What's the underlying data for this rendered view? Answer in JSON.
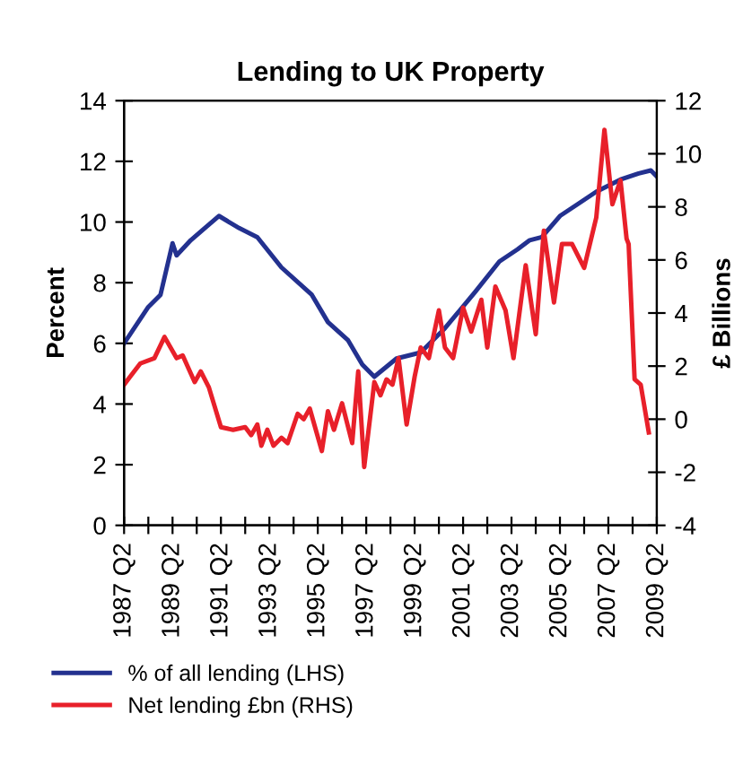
{
  "chart_data": {
    "type": "line",
    "title": "Lending to UK Property",
    "ylabel": "Percent",
    "y2label": "£ Billions",
    "xlim": [
      "1987-04",
      "2009-04"
    ],
    "xticks": [
      {
        "value": "1987-04",
        "label": "1987 Q2"
      },
      {
        "value": "1988-04",
        "label": null
      },
      {
        "value": "1989-04",
        "label": "1989 Q2"
      },
      {
        "value": "1990-04",
        "label": null
      },
      {
        "value": "1991-04",
        "label": "1991 Q2"
      },
      {
        "value": "1992-04",
        "label": null
      },
      {
        "value": "1993-04",
        "label": "1993 Q2"
      },
      {
        "value": "1994-04",
        "label": null
      },
      {
        "value": "1995-04",
        "label": "1995 Q2"
      },
      {
        "value": "1996-04",
        "label": null
      },
      {
        "value": "1997-04",
        "label": "1997 Q2"
      },
      {
        "value": "1998-04",
        "label": null
      },
      {
        "value": "1999-04",
        "label": "1999 Q2"
      },
      {
        "value": "2000-04",
        "label": null
      },
      {
        "value": "2001-04",
        "label": "2001 Q2"
      },
      {
        "value": "2002-04",
        "label": null
      },
      {
        "value": "2003-04",
        "label": "2003 Q2"
      },
      {
        "value": "2004-04",
        "label": null
      },
      {
        "value": "2005-04",
        "label": "2005 Q2"
      },
      {
        "value": "2006-04",
        "label": null
      },
      {
        "value": "2007-04",
        "label": "2007 Q2"
      },
      {
        "value": "2008-04",
        "label": null
      },
      {
        "value": "2009-04",
        "label": "2009 Q2"
      }
    ],
    "ylim": [
      0,
      14
    ],
    "yticks": [
      0,
      2,
      4,
      6,
      8,
      10,
      12,
      14
    ],
    "y2lim": [
      -4,
      12
    ],
    "y2ticks": [
      -4,
      -2,
      0,
      2,
      4,
      6,
      8,
      10,
      12
    ],
    "grid": false,
    "legend": "bottom",
    "marker": "none",
    "line_style": "solid",
    "series": [
      {
        "name": "% of all lending (LHS)",
        "color": "#23318f",
        "x": [
          "1987-04",
          "1988-04",
          "1988-10",
          "1989-04",
          "1989-06",
          "1990-01",
          "1991-03",
          "1992-01",
          "1992-10",
          "1993-10",
          "1995-01",
          "1995-09",
          "1996-07",
          "1997-02",
          "1997-08",
          "1998-07",
          "1999-07",
          "2000-07",
          "2001-10",
          "2002-10",
          "2003-07",
          "2004-01",
          "2004-07",
          "2005-04",
          "2006-01",
          "2006-10",
          "2007-10",
          "2008-07",
          "2009-01",
          "2009-04"
        ],
        "values": [
          6.0,
          7.2,
          7.6,
          9.3,
          8.9,
          9.4,
          10.2,
          9.8,
          9.5,
          8.5,
          7.6,
          6.7,
          6.1,
          5.3,
          4.9,
          5.5,
          5.7,
          6.5,
          7.7,
          8.7,
          9.1,
          9.4,
          9.5,
          10.2,
          10.6,
          11.0,
          11.4,
          11.6,
          11.7,
          11.5
        ]
      },
      {
        "name": "Net lending £bn (RHS)",
        "color": "#e8202a",
        "axis": "y2",
        "x": [
          "1987-04",
          "1987-07",
          "1987-12",
          "1988-07",
          "1988-12",
          "1989-06",
          "1989-09",
          "1990-03",
          "1990-06",
          "1990-10",
          "1991-04",
          "1991-10",
          "1992-04",
          "1992-07",
          "1992-10",
          "1992-12",
          "1993-03",
          "1993-06",
          "1993-10",
          "1994-01",
          "1994-06",
          "1994-09",
          "1994-12",
          "1995-06",
          "1995-09",
          "1995-12",
          "1996-04",
          "1996-09",
          "1996-12",
          "1997-03",
          "1997-08",
          "1997-11",
          "1998-02",
          "1998-05",
          "1998-08",
          "1998-12",
          "1999-04",
          "1999-07",
          "1999-11",
          "2000-04",
          "2000-07",
          "2000-11",
          "2001-04",
          "2001-08",
          "2002-01",
          "2002-04",
          "2002-08",
          "2003-01",
          "2003-05",
          "2003-11",
          "2004-04",
          "2004-08",
          "2005-01",
          "2005-05",
          "2005-10",
          "2006-04",
          "2006-10",
          "2007-02",
          "2007-06",
          "2007-10",
          "2008-01",
          "2008-02",
          "2008-05",
          "2008-08",
          "2008-12"
        ],
        "values": [
          1.3,
          1.6,
          2.1,
          2.3,
          3.1,
          2.3,
          2.4,
          1.4,
          1.8,
          1.2,
          -0.3,
          -0.4,
          -0.3,
          -0.6,
          -0.2,
          -1.0,
          -0.4,
          -1.0,
          -0.7,
          -0.9,
          0.2,
          0.0,
          0.4,
          -1.2,
          0.3,
          -0.4,
          0.6,
          -0.9,
          1.8,
          -1.8,
          1.4,
          0.9,
          1.5,
          1.3,
          2.3,
          -0.2,
          1.6,
          2.7,
          2.3,
          4.1,
          2.7,
          2.3,
          4.2,
          3.3,
          4.5,
          2.7,
          5.0,
          4.1,
          2.3,
          5.8,
          3.2,
          7.1,
          4.4,
          6.6,
          6.6,
          5.7,
          7.6,
          10.9,
          8.1,
          9.0,
          6.8,
          6.6,
          1.5,
          1.3,
          -0.5
        ]
      }
    ]
  }
}
